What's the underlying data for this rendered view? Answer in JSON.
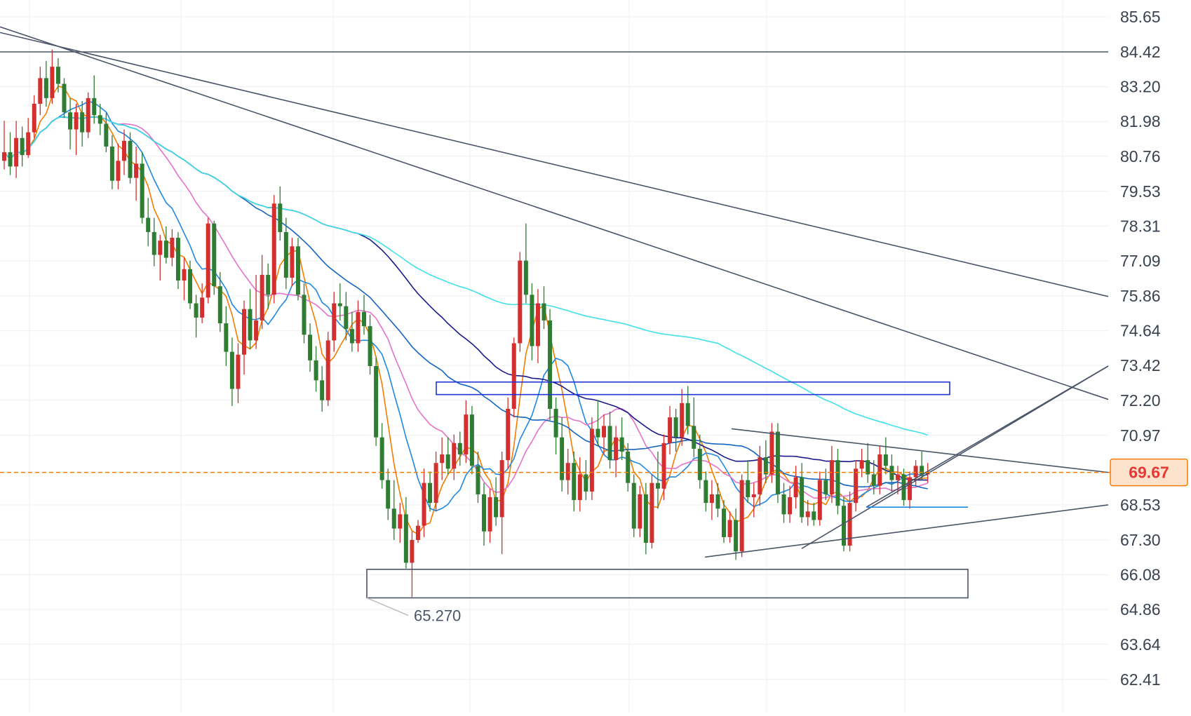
{
  "chart_data": {
    "type": "candlestick",
    "title": "",
    "xlabel": "",
    "ylabel": "",
    "y_axis_side": "right",
    "ylim": [
      61.6,
      86.3
    ],
    "yticks": [
      85.65,
      84.42,
      83.2,
      81.98,
      80.76,
      79.53,
      78.31,
      77.09,
      75.86,
      74.64,
      73.42,
      72.2,
      70.97,
      68.53,
      67.3,
      66.08,
      64.86,
      63.64,
      62.41
    ],
    "ytick_labels": [
      "85.65",
      "84.42",
      "83.20",
      "81.98",
      "80.76",
      "79.53",
      "78.31",
      "77.09",
      "75.86",
      "74.64",
      "73.42",
      "72.20",
      "70.97",
      "68.53",
      "67.30",
      "66.08",
      "64.86",
      "63.64",
      "62.41"
    ],
    "grid": true,
    "current_price": {
      "value": 69.67,
      "label": "69.67",
      "color": "#f57c00"
    },
    "low_marker": {
      "value": 65.27,
      "label": "65.270"
    },
    "colors": {
      "up": "#d32f2f",
      "down": "#2e7d32",
      "line": "#4a5568",
      "box_blue": "#2132d8"
    },
    "candles": [
      {
        "o": 80.6,
        "h": 82.0,
        "l": 80.3,
        "c": 80.9
      },
      {
        "o": 80.9,
        "h": 81.6,
        "l": 80.1,
        "c": 80.4
      },
      {
        "o": 80.4,
        "h": 82.0,
        "l": 80.0,
        "c": 81.4
      },
      {
        "o": 81.4,
        "h": 81.8,
        "l": 80.4,
        "c": 80.8
      },
      {
        "o": 80.8,
        "h": 82.1,
        "l": 80.7,
        "c": 81.6
      },
      {
        "o": 81.6,
        "h": 82.9,
        "l": 81.4,
        "c": 82.6
      },
      {
        "o": 82.6,
        "h": 83.9,
        "l": 82.2,
        "c": 83.5
      },
      {
        "o": 83.5,
        "h": 84.1,
        "l": 82.5,
        "c": 82.8
      },
      {
        "o": 82.8,
        "h": 84.5,
        "l": 82.6,
        "c": 83.9
      },
      {
        "o": 83.9,
        "h": 84.2,
        "l": 83.0,
        "c": 83.3
      },
      {
        "o": 83.3,
        "h": 83.5,
        "l": 82.1,
        "c": 82.3
      },
      {
        "o": 82.3,
        "h": 82.8,
        "l": 81.0,
        "c": 81.7
      },
      {
        "o": 81.7,
        "h": 82.6,
        "l": 80.8,
        "c": 82.3
      },
      {
        "o": 82.3,
        "h": 82.7,
        "l": 81.1,
        "c": 81.6
      },
      {
        "o": 81.6,
        "h": 83.0,
        "l": 81.4,
        "c": 82.8
      },
      {
        "o": 82.8,
        "h": 83.6,
        "l": 81.9,
        "c": 82.2
      },
      {
        "o": 82.2,
        "h": 82.6,
        "l": 81.5,
        "c": 81.9
      },
      {
        "o": 81.9,
        "h": 82.3,
        "l": 80.9,
        "c": 81.1
      },
      {
        "o": 81.1,
        "h": 81.5,
        "l": 79.6,
        "c": 79.9
      },
      {
        "o": 79.9,
        "h": 81.2,
        "l": 79.6,
        "c": 80.6
      },
      {
        "o": 80.6,
        "h": 81.7,
        "l": 80.1,
        "c": 81.3
      },
      {
        "o": 81.3,
        "h": 81.6,
        "l": 79.8,
        "c": 80.0
      },
      {
        "o": 80.0,
        "h": 81.1,
        "l": 79.2,
        "c": 80.5
      },
      {
        "o": 80.5,
        "h": 80.9,
        "l": 78.4,
        "c": 78.6
      },
      {
        "o": 78.6,
        "h": 79.3,
        "l": 77.6,
        "c": 78.1
      },
      {
        "o": 78.1,
        "h": 78.6,
        "l": 76.9,
        "c": 77.3
      },
      {
        "o": 77.3,
        "h": 78.0,
        "l": 76.4,
        "c": 77.8
      },
      {
        "o": 77.8,
        "h": 78.3,
        "l": 77.0,
        "c": 77.2
      },
      {
        "o": 77.2,
        "h": 78.2,
        "l": 76.9,
        "c": 77.9
      },
      {
        "o": 77.9,
        "h": 78.1,
        "l": 76.1,
        "c": 76.4
      },
      {
        "o": 76.4,
        "h": 77.2,
        "l": 75.7,
        "c": 76.8
      },
      {
        "o": 76.8,
        "h": 77.1,
        "l": 75.4,
        "c": 75.6
      },
      {
        "o": 75.6,
        "h": 75.9,
        "l": 74.4,
        "c": 75.1
      },
      {
        "o": 75.1,
        "h": 76.3,
        "l": 74.9,
        "c": 75.8
      },
      {
        "o": 75.8,
        "h": 78.6,
        "l": 75.6,
        "c": 78.4
      },
      {
        "o": 78.4,
        "h": 78.5,
        "l": 75.9,
        "c": 76.2
      },
      {
        "o": 76.2,
        "h": 76.7,
        "l": 74.6,
        "c": 74.9
      },
      {
        "o": 74.9,
        "h": 75.5,
        "l": 73.4,
        "c": 73.9
      },
      {
        "o": 73.9,
        "h": 74.4,
        "l": 72.0,
        "c": 72.6
      },
      {
        "o": 72.6,
        "h": 74.2,
        "l": 72.1,
        "c": 73.8
      },
      {
        "o": 73.8,
        "h": 75.7,
        "l": 73.1,
        "c": 75.4
      },
      {
        "o": 75.4,
        "h": 76.1,
        "l": 74.0,
        "c": 74.3
      },
      {
        "o": 74.3,
        "h": 76.6,
        "l": 74.0,
        "c": 75.0
      },
      {
        "o": 75.0,
        "h": 77.3,
        "l": 74.7,
        "c": 76.6
      },
      {
        "o": 76.6,
        "h": 77.0,
        "l": 75.4,
        "c": 75.9
      },
      {
        "o": 75.9,
        "h": 79.4,
        "l": 75.6,
        "c": 79.1
      },
      {
        "o": 79.1,
        "h": 79.7,
        "l": 77.8,
        "c": 78.1
      },
      {
        "o": 78.1,
        "h": 78.6,
        "l": 76.1,
        "c": 76.5
      },
      {
        "o": 76.5,
        "h": 77.9,
        "l": 76.2,
        "c": 77.6
      },
      {
        "o": 77.6,
        "h": 77.9,
        "l": 75.7,
        "c": 75.9
      },
      {
        "o": 75.9,
        "h": 76.3,
        "l": 74.2,
        "c": 74.5
      },
      {
        "o": 74.5,
        "h": 74.9,
        "l": 73.2,
        "c": 73.6
      },
      {
        "o": 73.6,
        "h": 74.1,
        "l": 72.5,
        "c": 72.9
      },
      {
        "o": 72.9,
        "h": 73.4,
        "l": 71.8,
        "c": 72.2
      },
      {
        "o": 72.2,
        "h": 74.6,
        "l": 72.0,
        "c": 74.3
      },
      {
        "o": 74.3,
        "h": 76.0,
        "l": 73.9,
        "c": 75.6
      },
      {
        "o": 75.6,
        "h": 76.3,
        "l": 75.0,
        "c": 75.5
      },
      {
        "o": 75.5,
        "h": 76.0,
        "l": 74.3,
        "c": 74.7
      },
      {
        "o": 74.7,
        "h": 75.3,
        "l": 73.9,
        "c": 74.2
      },
      {
        "o": 74.2,
        "h": 75.7,
        "l": 73.9,
        "c": 75.3
      },
      {
        "o": 75.3,
        "h": 75.9,
        "l": 74.5,
        "c": 74.8
      },
      {
        "o": 74.8,
        "h": 75.2,
        "l": 73.1,
        "c": 73.4
      },
      {
        "o": 73.4,
        "h": 73.7,
        "l": 70.6,
        "c": 70.9
      },
      {
        "o": 70.9,
        "h": 71.4,
        "l": 69.1,
        "c": 69.4
      },
      {
        "o": 69.4,
        "h": 69.8,
        "l": 68.0,
        "c": 68.4
      },
      {
        "o": 68.4,
        "h": 69.4,
        "l": 67.3,
        "c": 67.7
      },
      {
        "o": 67.7,
        "h": 68.6,
        "l": 67.2,
        "c": 68.2
      },
      {
        "o": 68.2,
        "h": 68.8,
        "l": 66.3,
        "c": 66.5
      },
      {
        "o": 66.5,
        "h": 67.6,
        "l": 65.3,
        "c": 67.3
      },
      {
        "o": 67.3,
        "h": 68.0,
        "l": 67.2,
        "c": 67.8
      },
      {
        "o": 67.8,
        "h": 69.8,
        "l": 67.4,
        "c": 69.3
      },
      {
        "o": 69.3,
        "h": 69.7,
        "l": 68.3,
        "c": 68.6
      },
      {
        "o": 68.6,
        "h": 70.4,
        "l": 68.3,
        "c": 70.0
      },
      {
        "o": 70.0,
        "h": 70.9,
        "l": 69.4,
        "c": 70.3
      },
      {
        "o": 70.3,
        "h": 70.9,
        "l": 69.6,
        "c": 69.8
      },
      {
        "o": 69.8,
        "h": 71.0,
        "l": 69.4,
        "c": 70.7
      },
      {
        "o": 70.7,
        "h": 71.1,
        "l": 69.9,
        "c": 70.3
      },
      {
        "o": 70.3,
        "h": 72.2,
        "l": 70.0,
        "c": 71.7
      },
      {
        "o": 71.7,
        "h": 72.0,
        "l": 69.6,
        "c": 69.9
      },
      {
        "o": 69.9,
        "h": 70.4,
        "l": 68.6,
        "c": 68.9
      },
      {
        "o": 68.9,
        "h": 69.3,
        "l": 67.1,
        "c": 67.6
      },
      {
        "o": 67.6,
        "h": 69.1,
        "l": 67.2,
        "c": 68.8
      },
      {
        "o": 68.8,
        "h": 69.5,
        "l": 67.8,
        "c": 68.1
      },
      {
        "o": 68.1,
        "h": 70.4,
        "l": 66.8,
        "c": 70.1
      },
      {
        "o": 70.1,
        "h": 72.3,
        "l": 69.8,
        "c": 71.9
      },
      {
        "o": 71.9,
        "h": 74.4,
        "l": 71.6,
        "c": 74.2
      },
      {
        "o": 74.2,
        "h": 77.4,
        "l": 73.9,
        "c": 77.1
      },
      {
        "o": 77.1,
        "h": 78.4,
        "l": 75.6,
        "c": 75.9
      },
      {
        "o": 75.9,
        "h": 76.3,
        "l": 73.6,
        "c": 74.1
      },
      {
        "o": 74.1,
        "h": 76.1,
        "l": 73.5,
        "c": 75.6
      },
      {
        "o": 75.6,
        "h": 76.2,
        "l": 74.7,
        "c": 75.0
      },
      {
        "o": 75.0,
        "h": 75.4,
        "l": 71.5,
        "c": 71.9
      },
      {
        "o": 71.9,
        "h": 72.3,
        "l": 70.3,
        "c": 70.9
      },
      {
        "o": 70.9,
        "h": 71.6,
        "l": 69.0,
        "c": 69.4
      },
      {
        "o": 69.4,
        "h": 70.5,
        "l": 68.9,
        "c": 70.0
      },
      {
        "o": 70.0,
        "h": 70.4,
        "l": 68.3,
        "c": 68.7
      },
      {
        "o": 68.7,
        "h": 70.2,
        "l": 68.3,
        "c": 69.6
      },
      {
        "o": 69.6,
        "h": 70.1,
        "l": 68.7,
        "c": 69.0
      },
      {
        "o": 69.0,
        "h": 71.6,
        "l": 68.7,
        "c": 71.2
      },
      {
        "o": 71.2,
        "h": 72.2,
        "l": 70.6,
        "c": 70.9
      },
      {
        "o": 70.9,
        "h": 71.7,
        "l": 70.3,
        "c": 71.3
      },
      {
        "o": 71.3,
        "h": 71.8,
        "l": 69.8,
        "c": 70.1
      },
      {
        "o": 70.1,
        "h": 71.3,
        "l": 69.5,
        "c": 70.9
      },
      {
        "o": 70.9,
        "h": 71.6,
        "l": 70.1,
        "c": 70.4
      },
      {
        "o": 70.4,
        "h": 70.7,
        "l": 69.0,
        "c": 69.3
      },
      {
        "o": 69.3,
        "h": 69.6,
        "l": 67.4,
        "c": 67.7
      },
      {
        "o": 67.7,
        "h": 69.2,
        "l": 67.4,
        "c": 68.9
      },
      {
        "o": 68.9,
        "h": 69.3,
        "l": 66.8,
        "c": 67.2
      },
      {
        "o": 67.2,
        "h": 69.6,
        "l": 67.0,
        "c": 69.3
      },
      {
        "o": 69.3,
        "h": 70.4,
        "l": 68.4,
        "c": 69.1
      },
      {
        "o": 69.1,
        "h": 71.0,
        "l": 68.7,
        "c": 70.7
      },
      {
        "o": 70.7,
        "h": 72.0,
        "l": 70.3,
        "c": 71.6
      },
      {
        "o": 71.6,
        "h": 71.9,
        "l": 70.4,
        "c": 70.9
      },
      {
        "o": 70.9,
        "h": 72.6,
        "l": 70.6,
        "c": 72.1
      },
      {
        "o": 72.1,
        "h": 72.7,
        "l": 71.0,
        "c": 71.3
      },
      {
        "o": 71.3,
        "h": 72.3,
        "l": 70.2,
        "c": 70.5
      },
      {
        "o": 70.5,
        "h": 71.0,
        "l": 69.1,
        "c": 69.4
      },
      {
        "o": 69.4,
        "h": 69.7,
        "l": 68.3,
        "c": 68.6
      },
      {
        "o": 68.6,
        "h": 69.4,
        "l": 68.0,
        "c": 68.9
      },
      {
        "o": 68.9,
        "h": 69.3,
        "l": 68.1,
        "c": 68.4
      },
      {
        "o": 68.4,
        "h": 68.7,
        "l": 67.2,
        "c": 67.4
      },
      {
        "o": 67.4,
        "h": 68.3,
        "l": 67.2,
        "c": 68.0
      },
      {
        "o": 68.0,
        "h": 68.4,
        "l": 66.6,
        "c": 66.9
      },
      {
        "o": 66.9,
        "h": 69.6,
        "l": 66.7,
        "c": 69.4
      },
      {
        "o": 69.4,
        "h": 70.1,
        "l": 68.6,
        "c": 68.8
      },
      {
        "o": 68.8,
        "h": 69.3,
        "l": 68.1,
        "c": 68.9
      },
      {
        "o": 68.9,
        "h": 70.6,
        "l": 68.5,
        "c": 70.2
      },
      {
        "o": 70.2,
        "h": 70.8,
        "l": 69.3,
        "c": 69.6
      },
      {
        "o": 69.6,
        "h": 71.4,
        "l": 69.3,
        "c": 71.1
      },
      {
        "o": 71.1,
        "h": 71.4,
        "l": 68.6,
        "c": 68.9
      },
      {
        "o": 68.9,
        "h": 69.3,
        "l": 67.9,
        "c": 68.2
      },
      {
        "o": 68.2,
        "h": 69.2,
        "l": 67.9,
        "c": 68.8
      },
      {
        "o": 68.8,
        "h": 69.9,
        "l": 68.4,
        "c": 69.5
      },
      {
        "o": 69.5,
        "h": 70.0,
        "l": 67.9,
        "c": 68.1
      },
      {
        "o": 68.1,
        "h": 68.7,
        "l": 67.8,
        "c": 68.3
      },
      {
        "o": 68.3,
        "h": 68.6,
        "l": 67.8,
        "c": 68.0
      },
      {
        "o": 68.0,
        "h": 69.7,
        "l": 67.8,
        "c": 69.4
      },
      {
        "o": 69.4,
        "h": 69.8,
        "l": 68.7,
        "c": 68.9
      },
      {
        "o": 68.9,
        "h": 70.6,
        "l": 68.6,
        "c": 70.1
      },
      {
        "o": 70.1,
        "h": 70.5,
        "l": 68.2,
        "c": 68.5
      },
      {
        "o": 68.5,
        "h": 68.8,
        "l": 66.9,
        "c": 67.1
      },
      {
        "o": 67.1,
        "h": 69.0,
        "l": 66.9,
        "c": 68.6
      },
      {
        "o": 68.6,
        "h": 70.1,
        "l": 68.3,
        "c": 69.8
      },
      {
        "o": 69.8,
        "h": 70.5,
        "l": 69.5,
        "c": 70.1
      },
      {
        "o": 70.1,
        "h": 70.7,
        "l": 69.3,
        "c": 69.6
      },
      {
        "o": 69.6,
        "h": 70.1,
        "l": 68.9,
        "c": 69.2
      },
      {
        "o": 69.2,
        "h": 70.6,
        "l": 68.9,
        "c": 70.3
      },
      {
        "o": 70.3,
        "h": 70.9,
        "l": 69.6,
        "c": 69.9
      },
      {
        "o": 69.9,
        "h": 70.3,
        "l": 69.0,
        "c": 69.4
      },
      {
        "o": 69.4,
        "h": 69.9,
        "l": 68.9,
        "c": 69.6
      },
      {
        "o": 69.6,
        "h": 69.8,
        "l": 68.5,
        "c": 68.7
      },
      {
        "o": 68.7,
        "h": 69.7,
        "l": 68.4,
        "c": 69.5
      },
      {
        "o": 69.5,
        "h": 70.1,
        "l": 69.2,
        "c": 69.9
      },
      {
        "o": 69.9,
        "h": 70.4,
        "l": 69.4,
        "c": 69.6
      },
      {
        "o": 69.6,
        "h": 70.0,
        "l": 69.3,
        "c": 69.7
      }
    ],
    "moving_averages": [
      {
        "color": "#f57c00",
        "period": 5
      },
      {
        "color": "#1e88e5",
        "period": 10
      },
      {
        "color": "#e573c9",
        "period": 20
      },
      {
        "color": "#1565c0",
        "period": 40
      },
      {
        "color": "#1a1a8c",
        "period": 60
      },
      {
        "color": "#40e0e8",
        "period": 120
      }
    ],
    "drawings": {
      "horizontal_line": 84.42,
      "trendlines": [
        {
          "x1": 0,
          "y1": 85.3,
          "x2": 1580,
          "y2": 72.23
        },
        {
          "x1": 0,
          "y1": 85.1,
          "x2": 1580,
          "y2": 75.84
        },
        {
          "x1": 1043,
          "y1": 71.2,
          "x2": 1580,
          "y2": 69.67
        },
        {
          "x1": 1005,
          "y1": 66.7,
          "x2": 1580,
          "y2": 68.53
        },
        {
          "x1": 1143,
          "y1": 67.0,
          "x2": 1580,
          "y2": 73.4
        },
        {
          "x1": 1235,
          "y1": 68.45,
          "x2": 1580,
          "y2": 73.4
        }
      ],
      "support_line": {
        "x1": 1235,
        "x2": 1380,
        "y": 68.45
      },
      "zone_box_top": {
        "x1": 622,
        "x2": 1354,
        "y_top": 72.84,
        "y_bottom": 72.4
      },
      "zone_box_bottom": {
        "x1": 523,
        "x2": 1380,
        "y_top": 66.27,
        "y_bottom": 65.27
      }
    }
  }
}
